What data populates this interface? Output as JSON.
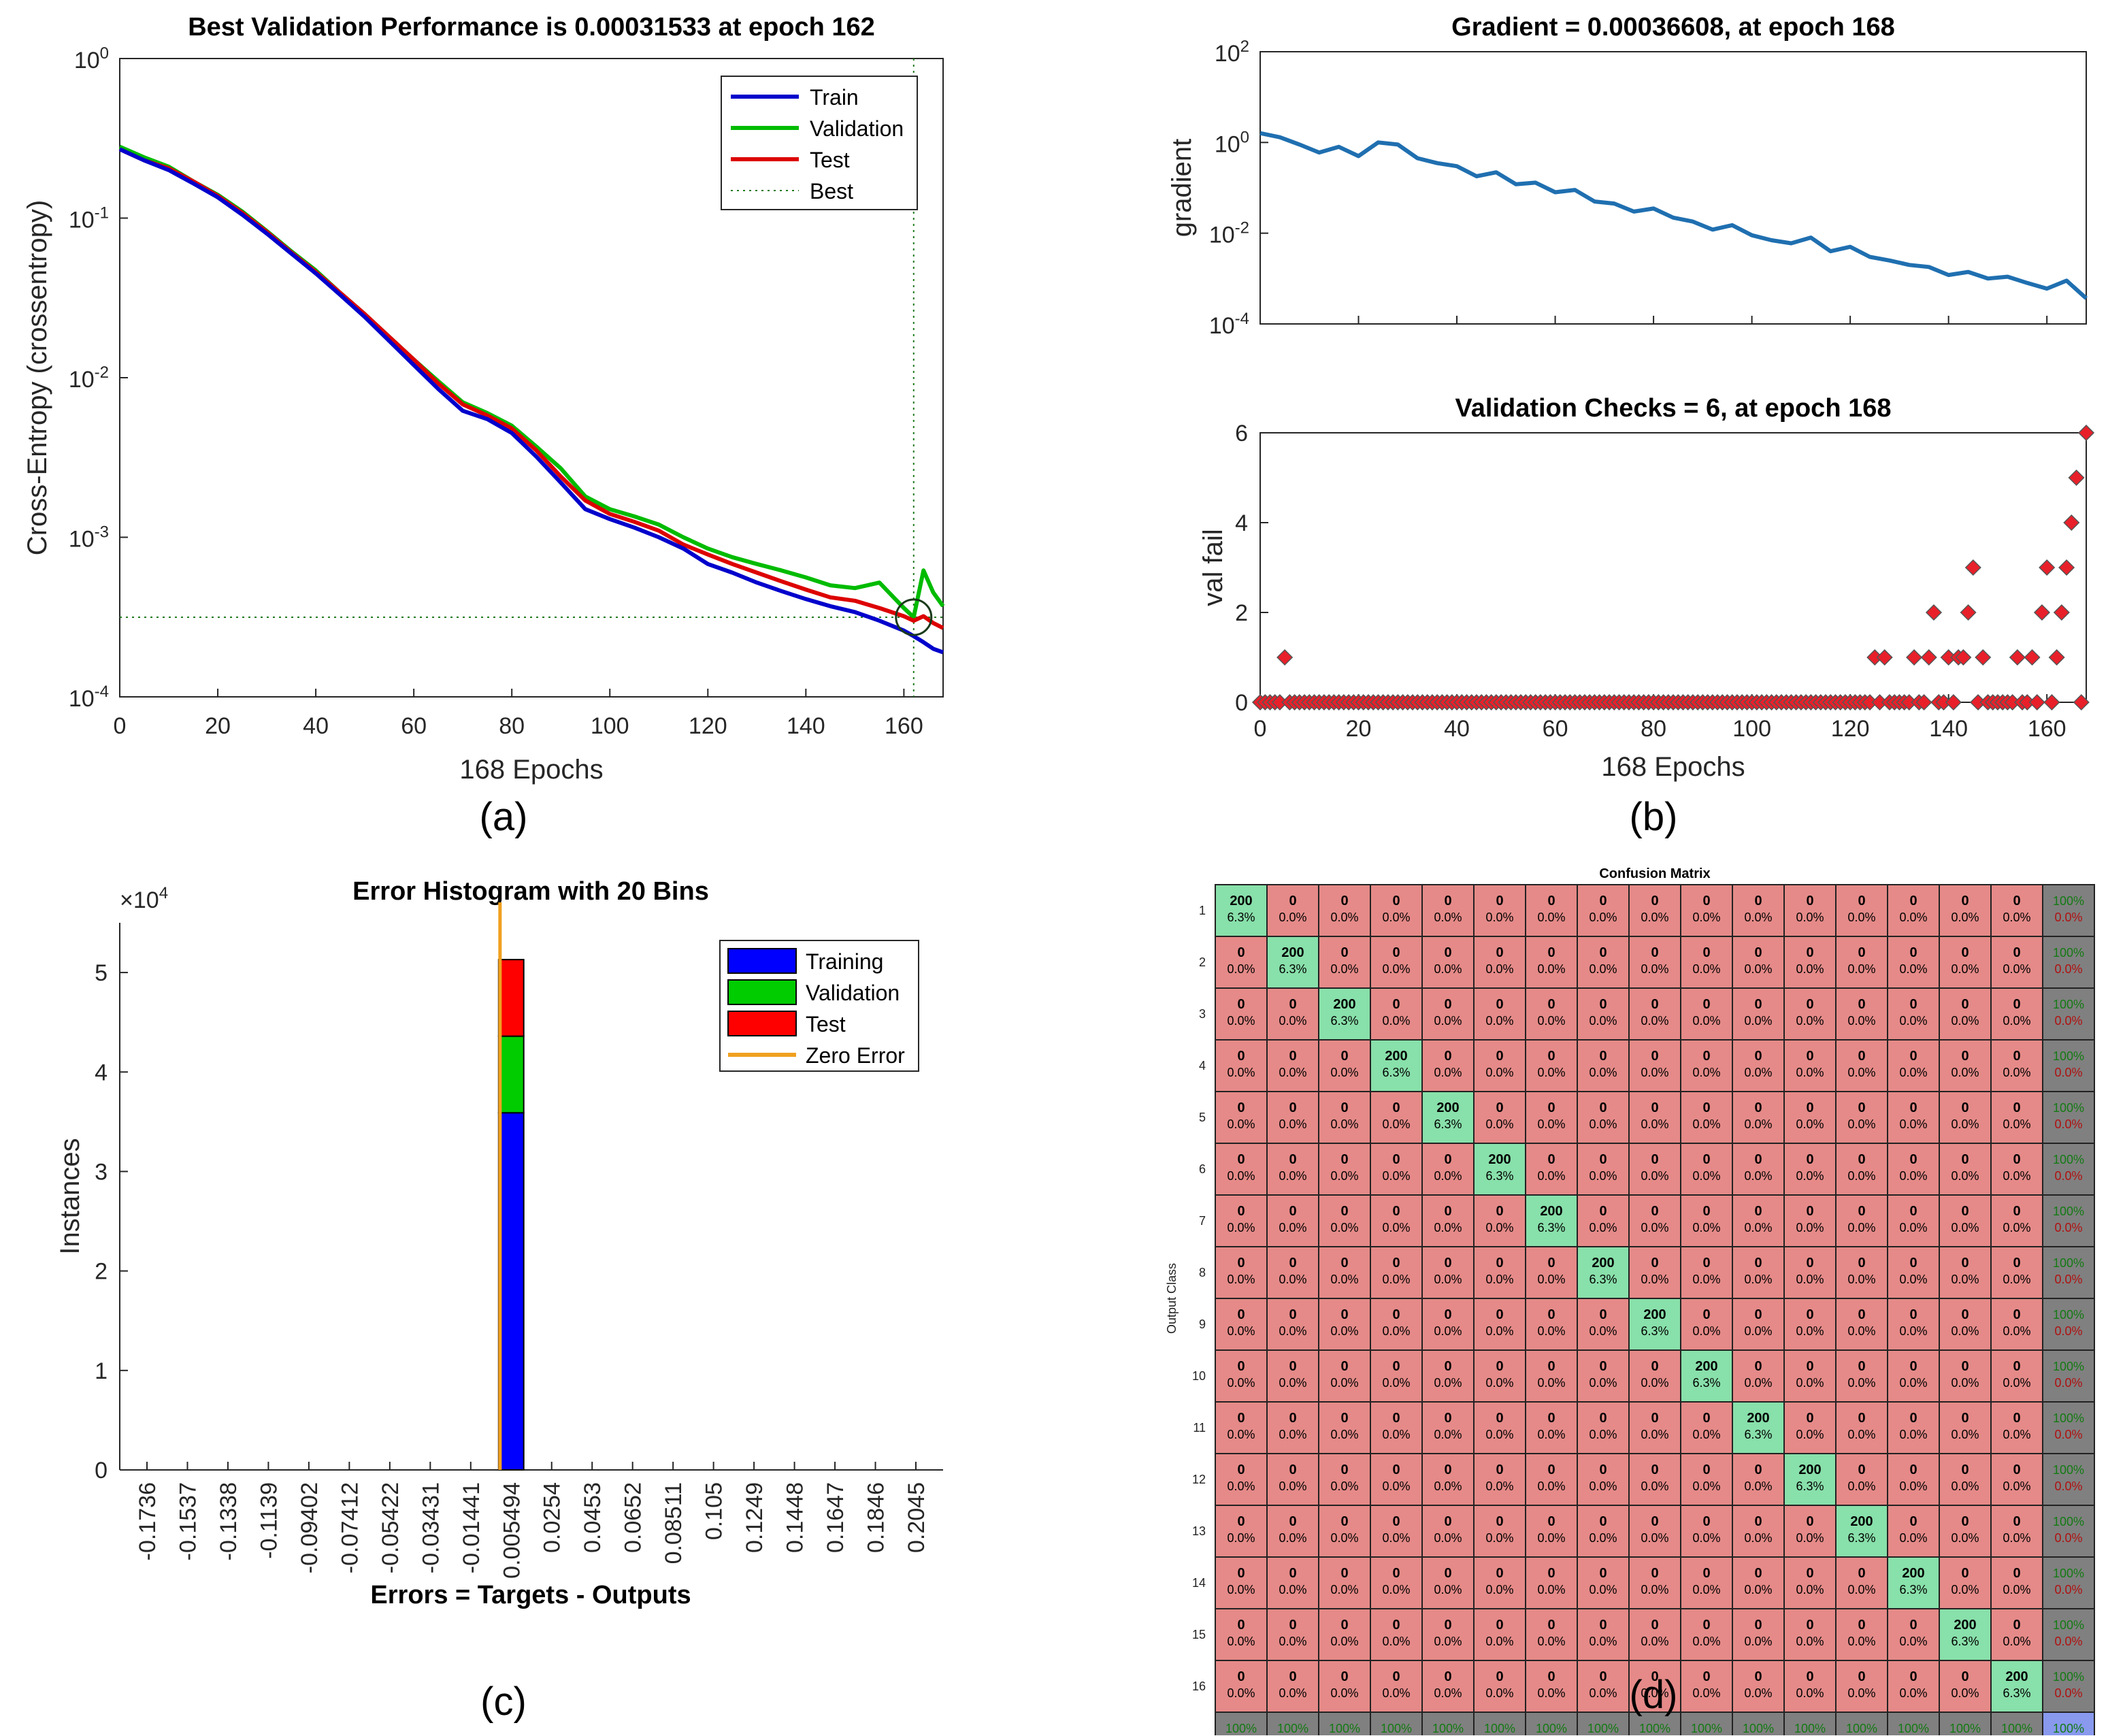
{
  "captions": {
    "a": "(a)",
    "b": "(b)",
    "c": "(c)",
    "d": "(d)"
  },
  "chart_data": [
    {
      "id": "a",
      "type": "line",
      "title": "Best Validation Performance is 0.00031533 at epoch 162",
      "xlabel": "168 Epochs",
      "ylabel": "Cross-Entropy  (crossentropy)",
      "xlim": [
        0,
        168
      ],
      "ylim": [
        0.0001,
        1
      ],
      "yscale": "log",
      "x_ticks": [
        "0",
        "20",
        "40",
        "60",
        "80",
        "100",
        "120",
        "140",
        "160"
      ],
      "y_ticks": [
        {
          "base": "10",
          "exp": "0"
        },
        {
          "base": "10",
          "exp": "-1"
        },
        {
          "base": "10",
          "exp": "-2"
        },
        {
          "base": "10",
          "exp": "-3"
        },
        {
          "base": "10",
          "exp": "-4"
        }
      ],
      "legend_position": "top-right",
      "legend": [
        "Train",
        "Validation",
        "Test",
        "Best"
      ],
      "best": {
        "epoch": 162,
        "value": 0.00031533
      },
      "colors": {
        "Train": "#0000cc",
        "Validation": "#00bb00",
        "Test": "#dd0000",
        "Best": "#207a20"
      },
      "x": [
        0,
        5,
        10,
        15,
        20,
        25,
        30,
        35,
        40,
        45,
        50,
        55,
        60,
        65,
        70,
        75,
        80,
        85,
        90,
        95,
        100,
        105,
        110,
        115,
        120,
        125,
        130,
        135,
        140,
        145,
        150,
        155,
        160,
        162,
        164,
        166,
        168
      ],
      "series": [
        {
          "name": "Train",
          "values": [
            0.27,
            0.23,
            0.2,
            0.165,
            0.135,
            0.105,
            0.08,
            0.06,
            0.045,
            0.033,
            0.024,
            0.017,
            0.012,
            0.0085,
            0.0062,
            0.0055,
            0.0045,
            0.0032,
            0.0022,
            0.0015,
            0.0013,
            0.00115,
            0.001,
            0.00085,
            0.00068,
            0.0006,
            0.00052,
            0.00046,
            0.00041,
            0.00037,
            0.00034,
            0.0003,
            0.00026,
            0.00024,
            0.00022,
            0.0002,
            0.00019
          ]
        },
        {
          "name": "Validation",
          "values": [
            0.28,
            0.24,
            0.21,
            0.17,
            0.14,
            0.11,
            0.083,
            0.062,
            0.047,
            0.034,
            0.025,
            0.018,
            0.013,
            0.0095,
            0.007,
            0.006,
            0.005,
            0.0037,
            0.0027,
            0.0018,
            0.0015,
            0.00135,
            0.0012,
            0.001,
            0.00085,
            0.00075,
            0.00068,
            0.00062,
            0.00056,
            0.0005,
            0.00048,
            0.00052,
            0.00036,
            0.00031533,
            0.00062,
            0.00045,
            0.00037
          ]
        },
        {
          "name": "Test",
          "values": [
            0.27,
            0.23,
            0.205,
            0.17,
            0.138,
            0.108,
            0.082,
            0.061,
            0.046,
            0.034,
            0.025,
            0.018,
            0.013,
            0.0092,
            0.0068,
            0.0058,
            0.0048,
            0.0035,
            0.0024,
            0.0017,
            0.0014,
            0.00125,
            0.0011,
            0.0009,
            0.00078,
            0.00068,
            0.0006,
            0.00053,
            0.00047,
            0.00042,
            0.0004,
            0.00036,
            0.00032,
            0.0003,
            0.00032,
            0.00029,
            0.00027
          ]
        }
      ]
    },
    {
      "id": "b-top",
      "type": "line",
      "title": "Gradient = 0.00036608, at epoch 168",
      "ylabel": "gradient",
      "xlim": [
        0,
        168
      ],
      "ylim": [
        0.0001,
        100
      ],
      "yscale": "log",
      "y_ticks": [
        {
          "base": "10",
          "exp": "2"
        },
        {
          "base": "10",
          "exp": "0"
        },
        {
          "base": "10",
          "exp": "-2"
        },
        {
          "base": "10",
          "exp": "-4"
        }
      ],
      "colors": {
        "gradient": "#1f6fb0"
      },
      "x": [
        0,
        4,
        8,
        12,
        16,
        20,
        24,
        28,
        32,
        36,
        40,
        44,
        48,
        52,
        56,
        60,
        64,
        68,
        72,
        76,
        80,
        84,
        88,
        92,
        96,
        100,
        104,
        108,
        112,
        116,
        120,
        124,
        128,
        132,
        136,
        140,
        144,
        148,
        152,
        156,
        160,
        164,
        168
      ],
      "series": [
        {
          "name": "",
          "values": [
            1.6,
            1.3,
            0.9,
            0.6,
            0.8,
            0.5,
            1.0,
            0.9,
            0.45,
            0.35,
            0.3,
            0.18,
            0.22,
            0.12,
            0.13,
            0.08,
            0.09,
            0.05,
            0.045,
            0.03,
            0.035,
            0.022,
            0.018,
            0.012,
            0.015,
            0.009,
            0.007,
            0.006,
            0.008,
            0.004,
            0.005,
            0.003,
            0.0025,
            0.002,
            0.0018,
            0.0012,
            0.0014,
            0.001,
            0.0011,
            0.0008,
            0.0006,
            0.0009,
            0.00036608
          ]
        }
      ]
    },
    {
      "id": "b-bottom",
      "type": "scatter",
      "title": "Validation Checks = 6, at epoch 168",
      "xlabel": "168 Epochs",
      "ylabel": "val fail",
      "xlim": [
        0,
        168
      ],
      "ylim": [
        0,
        6
      ],
      "x_ticks": [
        "0",
        "20",
        "40",
        "60",
        "80",
        "100",
        "120",
        "140",
        "160"
      ],
      "y_ticks": [
        "0",
        "2",
        "4",
        "6"
      ],
      "colors": {
        "marker_fill": "#e8202a",
        "marker_edge": "#555555"
      },
      "nonzero_points": [
        [
          5,
          1
        ],
        [
          125,
          1
        ],
        [
          127,
          1
        ],
        [
          133,
          1
        ],
        [
          136,
          1
        ],
        [
          137,
          2
        ],
        [
          140,
          1
        ],
        [
          142,
          1
        ],
        [
          143,
          1
        ],
        [
          144,
          2
        ],
        [
          145,
          3
        ],
        [
          147,
          1
        ],
        [
          154,
          1
        ],
        [
          157,
          1
        ],
        [
          159,
          2
        ],
        [
          160,
          3
        ],
        [
          162,
          1
        ],
        [
          163,
          2
        ],
        [
          164,
          3
        ],
        [
          165,
          4
        ],
        [
          166,
          5
        ],
        [
          168,
          6
        ]
      ]
    },
    {
      "id": "c",
      "type": "bar",
      "title": "Error Histogram with 20 Bins",
      "xlabel": "Errors = Targets - Outputs",
      "ylabel": "Instances",
      "y_multiplier": {
        "base": "×10",
        "exp": "4"
      },
      "ylim": [
        0,
        5.5
      ],
      "y_ticks": [
        "0",
        "1",
        "2",
        "3",
        "4",
        "5"
      ],
      "categories": [
        "-0.1736",
        "-0.1537",
        "-0.1338",
        "-0.1139",
        "-0.09402",
        "-0.07412",
        "-0.05422",
        "-0.03431",
        "-0.01441",
        "0.005494",
        "0.0254",
        "0.0453",
        "0.0652",
        "0.08511",
        "0.105",
        "0.1249",
        "0.1448",
        "0.1647",
        "0.1846",
        "0.2045"
      ],
      "legend_position": "top-right",
      "legend": [
        "Training",
        "Validation",
        "Test",
        "Zero Error"
      ],
      "colors": {
        "Training": "#0000ff",
        "Validation": "#00cc00",
        "Test": "#ff0000",
        "Zero Error": "#f0a020"
      },
      "series": [
        {
          "name": "Training",
          "values": [
            0,
            0,
            0,
            0,
            0,
            0,
            0,
            0,
            0,
            3.59,
            0,
            0,
            0,
            0,
            0,
            0,
            0,
            0,
            0,
            0
          ]
        },
        {
          "name": "Validation",
          "values": [
            0,
            0,
            0,
            0,
            0,
            0,
            0,
            0,
            0,
            0.77,
            0,
            0,
            0,
            0,
            0,
            0,
            0,
            0,
            0,
            0
          ]
        },
        {
          "name": "Test",
          "values": [
            0,
            0,
            0,
            0,
            0,
            0,
            0,
            0,
            0,
            0.77,
            0,
            0,
            0,
            0,
            0,
            0,
            0,
            0,
            0,
            0
          ]
        }
      ],
      "zero_error_x": 0
    },
    {
      "id": "d",
      "type": "heatmap",
      "title": "Confusion Matrix",
      "ylabel": "Output Class",
      "n_classes": 16,
      "row_labels": [
        "1",
        "2",
        "3",
        "4",
        "5",
        "6",
        "7",
        "8",
        "9",
        "10",
        "11",
        "12",
        "13",
        "14",
        "15",
        "16"
      ],
      "diagonal": {
        "count": "200",
        "percent": "6.3%"
      },
      "off_diagonal": {
        "count": "0",
        "percent": "0.0%"
      },
      "summary": {
        "correct": "100%",
        "wrong": "0.0%"
      },
      "colors": {
        "diagonal": "#88e0aa",
        "off_diagonal": "#e58a88",
        "summary": "#808080",
        "total": "#8899ee"
      }
    }
  ]
}
